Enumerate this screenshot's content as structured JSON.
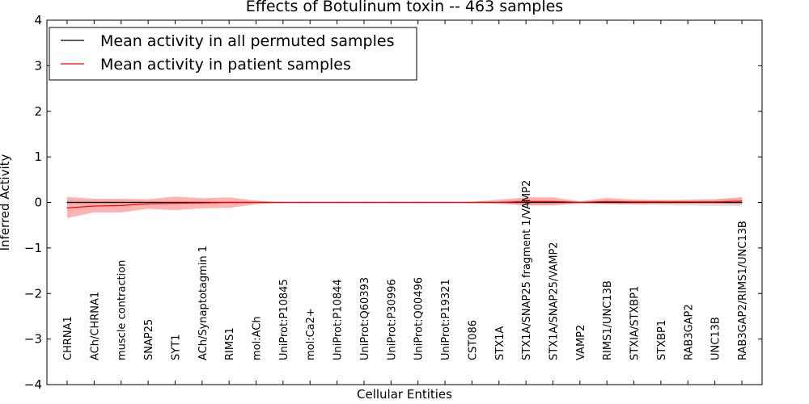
{
  "chart_data": {
    "type": "line",
    "title": "Effects of Botulinum toxin -- 463 samples",
    "xlabel": "Cellular Entities",
    "ylabel": "Inferred Activity",
    "ylim": [
      -4,
      4
    ],
    "yticks": [
      "−4",
      "−3",
      "−2",
      "−1",
      "0",
      "1",
      "2",
      "3",
      "4"
    ],
    "grid": false,
    "legend_position": "top-left",
    "categories": [
      "CHRNA1",
      "ACh/CHRNA1",
      "muscle contraction",
      "SNAP25",
      "SYT1",
      "ACh/Synaptotagmin 1",
      "RIMS1",
      "mol:ACh",
      "UniProt:P10845",
      "mol:Ca2+",
      "UniProt:P10844",
      "UniProt:Q60393",
      "UniProt:P30996",
      "UniProt:Q00496",
      "UniProt:P19321",
      "CST086",
      "STX1A",
      "STX1A/SNAP25 fragment 1/VAMP2",
      "STX1A/SNAP25/VAMP2",
      "VAMP2",
      "RIMS1/UNC13B",
      "STXIA/STXBP1",
      "STXBP1",
      "RAB3GAP2",
      "UNC13B",
      "RAB3GAP2/RIMS1/UNC13B"
    ],
    "series": [
      {
        "name": "Mean activity in all permuted samples",
        "color": "#000000",
        "values": [
          0.0,
          0.0,
          0.0,
          0.0,
          0.0,
          0.0,
          0.0,
          0.0,
          0.0,
          0.0,
          0.0,
          0.0,
          0.0,
          0.0,
          0.0,
          0.0,
          0.0,
          0.0,
          0.0,
          0.0,
          0.0,
          0.0,
          0.0,
          0.0,
          0.0,
          0.0
        ],
        "band_lower": [
          -0.05,
          -0.04,
          -0.04,
          -0.03,
          -0.03,
          -0.03,
          -0.02,
          -0.01,
          0.0,
          0.0,
          0.0,
          0.0,
          0.0,
          0.0,
          0.0,
          -0.01,
          -0.03,
          -0.06,
          -0.05,
          -0.02,
          -0.03,
          -0.05,
          -0.06,
          -0.07,
          -0.08,
          -0.08
        ],
        "band_upper": [
          0.05,
          0.04,
          0.04,
          0.03,
          0.03,
          0.03,
          0.02,
          0.01,
          0.0,
          0.0,
          0.0,
          0.0,
          0.0,
          0.0,
          0.0,
          0.01,
          0.03,
          0.06,
          0.05,
          0.02,
          0.03,
          0.05,
          0.06,
          0.07,
          0.08,
          0.08
        ],
        "band_color": "#cccccc"
      },
      {
        "name": "Mean activity in patient samples",
        "color": "#ff0000",
        "values": [
          -0.12,
          -0.08,
          -0.07,
          -0.03,
          -0.02,
          -0.01,
          0.0,
          0.0,
          0.0,
          0.0,
          0.0,
          0.0,
          0.0,
          0.0,
          0.0,
          0.0,
          0.0,
          0.02,
          0.02,
          0.0,
          0.02,
          0.01,
          0.01,
          0.01,
          0.01,
          0.03
        ],
        "band_lower": [
          -0.34,
          -0.22,
          -0.22,
          -0.14,
          -0.17,
          -0.13,
          -0.12,
          -0.04,
          0.0,
          0.0,
          0.0,
          0.0,
          0.0,
          0.0,
          0.0,
          -0.01,
          -0.02,
          -0.07,
          -0.07,
          -0.02,
          -0.04,
          -0.04,
          -0.03,
          -0.03,
          -0.03,
          -0.04
        ],
        "band_upper": [
          0.12,
          0.08,
          0.08,
          0.07,
          0.13,
          0.09,
          0.11,
          0.04,
          0.0,
          0.0,
          0.0,
          0.0,
          0.0,
          0.0,
          0.0,
          0.01,
          0.06,
          0.11,
          0.11,
          0.02,
          0.1,
          0.06,
          0.05,
          0.05,
          0.06,
          0.12
        ],
        "band_color": "#ff6666"
      }
    ]
  }
}
